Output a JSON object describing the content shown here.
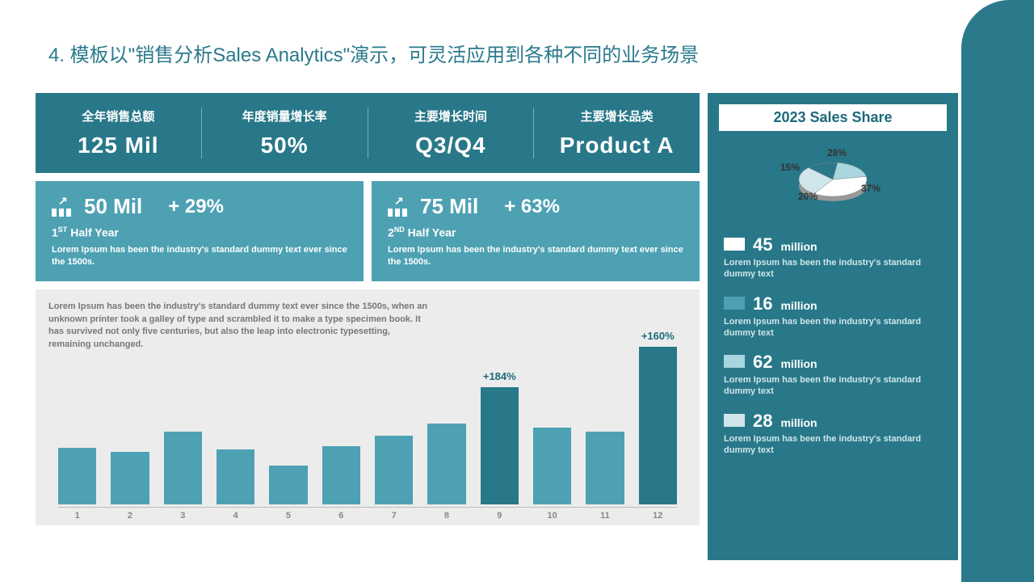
{
  "colors": {
    "dark_teal": "#287889",
    "mid_teal": "#4da1b3",
    "light_teal": "#a8d5de",
    "pale": "#d0e5ea",
    "white": "#ffffff",
    "grey_bg": "#ececec",
    "text_grey": "#777777",
    "accent_text": "#1d6a7c"
  },
  "page_title": "4. 模板以\"销售分析Sales Analytics\"演示，可灵活应用到各种不同的业务场景",
  "kpis": [
    {
      "label": "全年销售总额",
      "value": "125 Mil"
    },
    {
      "label": "年度销量增长率",
      "value": "50%"
    },
    {
      "label": "主要增长时间",
      "value": "Q3/Q4"
    },
    {
      "label": "主要增长品类",
      "value": "Product A"
    }
  ],
  "halves": [
    {
      "value": "50 Mil",
      "pct": "+ 29%",
      "period_prefix": "1",
      "period_sup": "ST",
      "period_suffix": " Half Year",
      "desc": "Lorem Ipsum has been the industry's standard dummy text ever since the 1500s."
    },
    {
      "value": "75 Mil",
      "pct": "+ 63%",
      "period_prefix": "2",
      "period_sup": "ND",
      "period_suffix": " Half Year",
      "desc": "Lorem Ipsum has been the industry's standard dummy text ever since the 1500s."
    }
  ],
  "bar_chart": {
    "type": "bar",
    "desc": "Lorem Ipsum has been the industry's standard dummy text ever since the 1500s, when an unknown printer took a galley of type and scrambled it to make a type specimen book. It has survived not only five centuries, but also the leap into electronic typesetting, remaining unchanged.",
    "categories": [
      "1",
      "2",
      "3",
      "4",
      "5",
      "6",
      "7",
      "8",
      "9",
      "10",
      "11",
      "12"
    ],
    "values": [
      70,
      65,
      90,
      68,
      48,
      72,
      85,
      100,
      145,
      95,
      90,
      195
    ],
    "bar_colors": [
      "#4da1b3",
      "#4da1b3",
      "#4da1b3",
      "#4da1b3",
      "#4da1b3",
      "#4da1b3",
      "#4da1b3",
      "#4da1b3",
      "#287889",
      "#4da1b3",
      "#4da1b3",
      "#287889"
    ],
    "max_value": 200,
    "annotations": [
      {
        "index": 8,
        "text": "+184%"
      },
      {
        "index": 11,
        "text": "+160%"
      }
    ]
  },
  "sidebar": {
    "title": "2023 Sales Share",
    "pie": {
      "type": "pie",
      "slices": [
        {
          "label": "37%",
          "value": 37,
          "color": "#ffffff"
        },
        {
          "label": "28%",
          "value": 28,
          "color": "#d0e5ea"
        },
        {
          "label": "15%",
          "value": 15,
          "color": "#287889"
        },
        {
          "label": "20%",
          "value": 20,
          "color": "#a8d5de"
        }
      ]
    },
    "legend": [
      {
        "swatch": "#ffffff",
        "value": "45",
        "unit": "million",
        "desc": "Lorem Ipsum has been the industry's standard dummy text"
      },
      {
        "swatch": "#4da1b3",
        "value": "16",
        "unit": "million",
        "desc": "Lorem Ipsum has been the industry's standard dummy text"
      },
      {
        "swatch": "#a8d5de",
        "value": "62",
        "unit": "million",
        "desc": "Lorem Ipsum has been the industry's standard dummy text"
      },
      {
        "swatch": "#d0e5ea",
        "value": "28",
        "unit": "million",
        "desc": "Lorem Ipsum has been the industry's standard dummy text"
      }
    ]
  }
}
